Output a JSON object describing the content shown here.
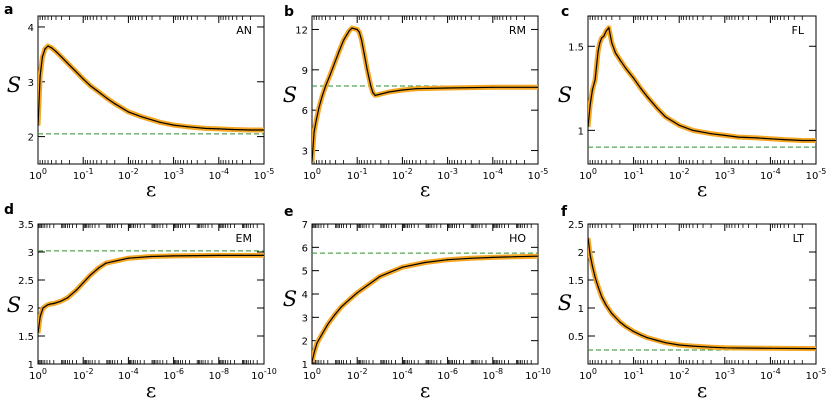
{
  "figure": {
    "colors": {
      "band": "#f5a623",
      "line": "#000000",
      "reference": "#2e8b2e"
    }
  },
  "chart_data": [
    {
      "type": "line",
      "panel": "a",
      "tag": "AN",
      "xlabel": "ε",
      "ylabel": "S",
      "x_scale": "log",
      "x_reversed": true,
      "xlim": [
        1,
        1e-05
      ],
      "ylim": [
        1.5,
        4.2
      ],
      "x_ticks": [
        1,
        0.1,
        0.01,
        0.001,
        0.0001,
        1e-05
      ],
      "x_tick_labels": [
        {
          "base": "10",
          "exp": "0"
        },
        {
          "base": "10",
          "exp": "-1"
        },
        {
          "base": "10",
          "exp": "-2"
        },
        {
          "base": "10",
          "exp": "-3"
        },
        {
          "base": "10",
          "exp": "-4"
        },
        {
          "base": "10",
          "exp": "-5"
        }
      ],
      "y_ticks": [
        2,
        3,
        4
      ],
      "y_tick_labels": [
        "2",
        "3",
        "4"
      ],
      "reference_line": 2.05,
      "series": [
        {
          "x": [
            1,
            0.9,
            0.8,
            0.7,
            0.6,
            0.5,
            0.4,
            0.3,
            0.2,
            0.15,
            0.1,
            0.07,
            0.05,
            0.03,
            0.02,
            0.01,
            0.005,
            0.002,
            0.001,
            0.0005,
            0.0002,
            0.0001,
            5e-05,
            2e-05,
            1e-05
          ],
          "y": [
            2.2,
            3.1,
            3.45,
            3.6,
            3.65,
            3.62,
            3.55,
            3.45,
            3.3,
            3.2,
            3.05,
            2.93,
            2.84,
            2.7,
            2.6,
            2.45,
            2.36,
            2.26,
            2.21,
            2.18,
            2.15,
            2.14,
            2.13,
            2.12,
            2.12
          ]
        }
      ]
    },
    {
      "type": "line",
      "panel": "b",
      "tag": "RM",
      "xlabel": "ε",
      "ylabel": "S",
      "x_scale": "log",
      "x_reversed": true,
      "xlim": [
        1,
        1e-05
      ],
      "ylim": [
        2,
        13
      ],
      "x_ticks": [
        1,
        0.1,
        0.01,
        0.001,
        0.0001,
        1e-05
      ],
      "x_tick_labels": [
        {
          "base": "10",
          "exp": "0"
        },
        {
          "base": "10",
          "exp": "-1"
        },
        {
          "base": "10",
          "exp": "-2"
        },
        {
          "base": "10",
          "exp": "-3"
        },
        {
          "base": "10",
          "exp": "-4"
        },
        {
          "base": "10",
          "exp": "-5"
        }
      ],
      "y_ticks": [
        3,
        6,
        9,
        12
      ],
      "y_tick_labels": [
        "3",
        "6",
        "9",
        "12"
      ],
      "reference_line": 7.8,
      "series": [
        {
          "x": [
            1,
            0.9,
            0.8,
            0.7,
            0.6,
            0.5,
            0.4,
            0.3,
            0.25,
            0.2,
            0.17,
            0.15,
            0.13,
            0.1,
            0.09,
            0.08,
            0.07,
            0.06,
            0.05,
            0.045,
            0.04,
            0.03,
            0.02,
            0.01,
            0.005,
            0.001,
            0.0001,
            1e-05
          ],
          "y": [
            2.2,
            4.4,
            5.3,
            6.2,
            7.0,
            7.8,
            8.6,
            9.7,
            10.4,
            11.2,
            11.6,
            11.9,
            12.1,
            12.0,
            11.8,
            11.2,
            10.2,
            9.0,
            7.8,
            7.3,
            7.1,
            7.2,
            7.35,
            7.5,
            7.6,
            7.65,
            7.7,
            7.7
          ]
        }
      ]
    },
    {
      "type": "line",
      "panel": "c",
      "tag": "FL",
      "xlabel": "ε",
      "ylabel": "S",
      "x_scale": "log",
      "x_reversed": true,
      "xlim": [
        1,
        1e-05
      ],
      "ylim": [
        0.8,
        1.68
      ],
      "x_ticks": [
        1,
        0.1,
        0.01,
        0.001,
        0.0001,
        1e-05
      ],
      "x_tick_labels": [
        {
          "base": "10",
          "exp": "0"
        },
        {
          "base": "10",
          "exp": "-1"
        },
        {
          "base": "10",
          "exp": "-2"
        },
        {
          "base": "10",
          "exp": "-3"
        },
        {
          "base": "10",
          "exp": "-4"
        },
        {
          "base": "10",
          "exp": "-5"
        }
      ],
      "y_ticks": [
        1,
        1.5
      ],
      "y_tick_labels": [
        "1",
        "1.5"
      ],
      "reference_line": 0.9,
      "series": [
        {
          "x": [
            1,
            0.9,
            0.8,
            0.7,
            0.6,
            0.55,
            0.5,
            0.45,
            0.4,
            0.35,
            0.3,
            0.25,
            0.2,
            0.15,
            0.1,
            0.07,
            0.05,
            0.03,
            0.02,
            0.01,
            0.005,
            0.002,
            0.001,
            0.0005,
            0.0002,
            0.0001,
            5e-05,
            2e-05,
            1e-05
          ],
          "y": [
            1.02,
            1.15,
            1.24,
            1.3,
            1.47,
            1.52,
            1.55,
            1.56,
            1.59,
            1.61,
            1.52,
            1.46,
            1.42,
            1.37,
            1.31,
            1.25,
            1.2,
            1.13,
            1.08,
            1.03,
            1.0,
            0.98,
            0.97,
            0.96,
            0.955,
            0.95,
            0.945,
            0.94,
            0.94
          ]
        }
      ]
    },
    {
      "type": "line",
      "panel": "d",
      "tag": "EM",
      "xlabel": "ε",
      "ylabel": "S",
      "x_scale": "log",
      "x_reversed": true,
      "xlim": [
        1,
        1e-10
      ],
      "ylim": [
        1,
        3.5
      ],
      "x_ticks": [
        1,
        0.01,
        0.0001,
        1e-06,
        1e-08,
        1e-10
      ],
      "x_tick_labels": [
        {
          "base": "10",
          "exp": "0"
        },
        {
          "base": "10",
          "exp": "-2"
        },
        {
          "base": "10",
          "exp": "-4"
        },
        {
          "base": "10",
          "exp": "-6"
        },
        {
          "base": "10",
          "exp": "-8"
        },
        {
          "base": "10",
          "exp": "-10"
        }
      ],
      "y_ticks": [
        1,
        1.5,
        2,
        2.5,
        3,
        3.5
      ],
      "y_tick_labels": [
        "1",
        "1.5",
        "2",
        "2.5",
        "3",
        "3.5"
      ],
      "reference_line": 3.02,
      "series": [
        {
          "x": [
            1,
            0.8,
            0.6,
            0.4,
            0.3,
            0.2,
            0.1,
            0.05,
            0.02,
            0.01,
            0.005,
            0.002,
            0.001,
            0.0001,
            1e-05,
            1e-06,
            1e-07,
            1e-08,
            1e-09,
            1e-10
          ],
          "y": [
            1.55,
            1.85,
            2.0,
            2.05,
            2.07,
            2.08,
            2.12,
            2.18,
            2.32,
            2.45,
            2.58,
            2.72,
            2.8,
            2.89,
            2.92,
            2.93,
            2.935,
            2.94,
            2.94,
            2.94
          ]
        }
      ]
    },
    {
      "type": "line",
      "panel": "e",
      "tag": "HO",
      "xlabel": "ε",
      "ylabel": "S",
      "x_scale": "log",
      "x_reversed": true,
      "xlim": [
        1,
        1e-10
      ],
      "ylim": [
        1,
        7
      ],
      "x_ticks": [
        1,
        0.01,
        0.0001,
        1e-06,
        1e-08,
        1e-10
      ],
      "x_tick_labels": [
        {
          "base": "10",
          "exp": "0"
        },
        {
          "base": "10",
          "exp": "-2"
        },
        {
          "base": "10",
          "exp": "-4"
        },
        {
          "base": "10",
          "exp": "-6"
        },
        {
          "base": "10",
          "exp": "-8"
        },
        {
          "base": "10",
          "exp": "-10"
        }
      ],
      "y_ticks": [
        1,
        2,
        3,
        4,
        5,
        6,
        7
      ],
      "y_tick_labels": [
        "1",
        "2",
        "3",
        "4",
        "5",
        "6",
        "7"
      ],
      "reference_line": 5.75,
      "series": [
        {
          "x": [
            1,
            0.8,
            0.6,
            0.4,
            0.2,
            0.1,
            0.05,
            0.02,
            0.01,
            0.001,
            0.0001,
            1e-05,
            1e-06,
            1e-07,
            1e-08,
            1e-09,
            1e-10
          ],
          "y": [
            1.1,
            1.5,
            1.9,
            2.2,
            2.7,
            3.1,
            3.45,
            3.8,
            4.05,
            4.75,
            5.15,
            5.35,
            5.47,
            5.53,
            5.57,
            5.6,
            5.62
          ]
        }
      ]
    },
    {
      "type": "line",
      "panel": "f",
      "tag": "LT",
      "xlabel": "ε",
      "ylabel": "S",
      "x_scale": "log",
      "x_reversed": true,
      "xlim": [
        1,
        1e-05
      ],
      "ylim": [
        0,
        2.5
      ],
      "x_ticks": [
        1,
        0.1,
        0.01,
        0.001,
        0.0001,
        1e-05
      ],
      "x_tick_labels": [
        {
          "base": "10",
          "exp": "0"
        },
        {
          "base": "10",
          "exp": "-1"
        },
        {
          "base": "10",
          "exp": "-2"
        },
        {
          "base": "10",
          "exp": "-3"
        },
        {
          "base": "10",
          "exp": "-4"
        },
        {
          "base": "10",
          "exp": "-5"
        }
      ],
      "y_ticks": [
        0.5,
        1,
        1.5,
        2,
        2.5
      ],
      "y_tick_labels": [
        "0.5",
        "1",
        "1.5",
        "2",
        "2.5"
      ],
      "reference_line": 0.25,
      "series": [
        {
          "x": [
            1,
            0.9,
            0.8,
            0.7,
            0.6,
            0.5,
            0.4,
            0.3,
            0.2,
            0.15,
            0.1,
            0.07,
            0.05,
            0.03,
            0.02,
            0.01,
            0.005,
            0.002,
            0.001,
            0.0005,
            0.0001,
            1e-05
          ],
          "y": [
            2.25,
            1.95,
            1.75,
            1.55,
            1.38,
            1.2,
            1.05,
            0.9,
            0.75,
            0.67,
            0.58,
            0.52,
            0.47,
            0.42,
            0.38,
            0.34,
            0.32,
            0.3,
            0.29,
            0.285,
            0.28,
            0.275
          ]
        }
      ]
    }
  ]
}
